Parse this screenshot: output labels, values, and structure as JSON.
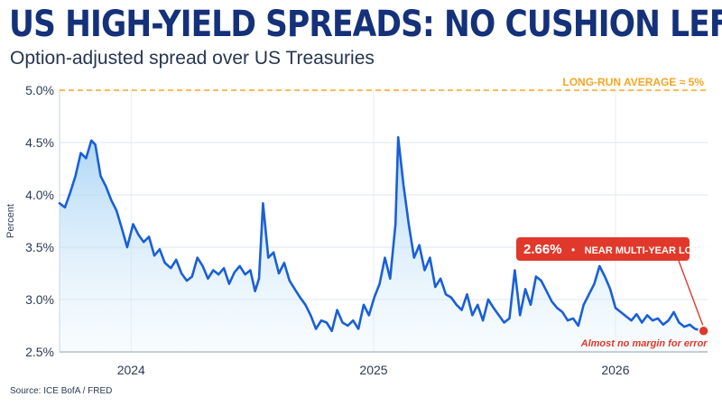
{
  "header": {
    "title": "US HIGH-YIELD SPREADS: NO CUSHION LEFT",
    "subtitle": "Option-adjusted spread over US Treasuries"
  },
  "footer": {
    "source": "Source: ICE BofA / FRED"
  },
  "colors": {
    "line": "#1a5fd6",
    "area_top": "#9fd0f3",
    "average": "#f5a623",
    "callout": "#e0392b",
    "title": "#14317a",
    "axis": "#2c3b54"
  },
  "chart_data": {
    "type": "area",
    "title": "US HIGH-YIELD SPREADS: NO CUSHION LEFT",
    "subtitle": "Option-adjusted spread over US Treasuries",
    "ylabel": "Percent",
    "xlabel": "",
    "ylim": [
      2.5,
      5.0
    ],
    "yticks": [
      2.5,
      3.0,
      3.5,
      4.0,
      4.5,
      5.0
    ],
    "ytick_labels": [
      "2.5%",
      "3.0%",
      "3.5%",
      "4.0%",
      "4.5%",
      "5.0%"
    ],
    "xlim": [
      "2023-09-15",
      "2026-05-20"
    ],
    "xtick_labels": [
      {
        "label": "2024",
        "date": "2024-01-01"
      },
      {
        "label": "2025",
        "date": "2025-01-01"
      },
      {
        "label": "2026",
        "date": "2026-01-01"
      }
    ],
    "grid": true,
    "reference_line": {
      "value": 5.0,
      "label": "LONG-RUN AVERAGE ≈ 5%"
    },
    "callout": {
      "value": "2.66%",
      "separator": "•",
      "text": "NEAR MULTI-YEAR LOWS",
      "note": "Almost no margin for error",
      "date": "2026-05-14",
      "y": 2.7
    },
    "series": [
      {
        "x": [
          "2023-09-15",
          "2023-09-23",
          "2023-10-01",
          "2023-10-09",
          "2023-10-17",
          "2023-10-25",
          "2023-11-02",
          "2023-11-08",
          "2023-11-16",
          "2023-11-24",
          "2023-12-02",
          "2023-12-10",
          "2023-12-18",
          "2023-12-26",
          "2024-01-04",
          "2024-01-12",
          "2024-01-20",
          "2024-01-28",
          "2024-02-05",
          "2024-02-13",
          "2024-02-21",
          "2024-03-01",
          "2024-03-09",
          "2024-03-17",
          "2024-03-25",
          "2024-04-02",
          "2024-04-10",
          "2024-04-18",
          "2024-04-26",
          "2024-05-04",
          "2024-05-12",
          "2024-05-20",
          "2024-05-28",
          "2024-06-05",
          "2024-06-13",
          "2024-06-21",
          "2024-06-29",
          "2024-07-06",
          "2024-07-12",
          "2024-07-18",
          "2024-07-26",
          "2024-08-03",
          "2024-08-11",
          "2024-08-19",
          "2024-08-27",
          "2024-09-04",
          "2024-09-12",
          "2024-09-20",
          "2024-09-28",
          "2024-10-06",
          "2024-10-14",
          "2024-10-22",
          "2024-10-30",
          "2024-11-07",
          "2024-11-15",
          "2024-11-23",
          "2024-12-01",
          "2024-12-09",
          "2024-12-17",
          "2024-12-25",
          "2025-01-02",
          "2025-01-10",
          "2025-01-18",
          "2025-01-26",
          "2025-02-03",
          "2025-02-07",
          "2025-02-15",
          "2025-02-23",
          "2025-03-03",
          "2025-03-11",
          "2025-03-19",
          "2025-03-27",
          "2025-04-04",
          "2025-04-12",
          "2025-04-20",
          "2025-04-28",
          "2025-05-06",
          "2025-05-14",
          "2025-05-22",
          "2025-05-30",
          "2025-06-07",
          "2025-06-15",
          "2025-06-23",
          "2025-07-01",
          "2025-07-09",
          "2025-07-17",
          "2025-07-25",
          "2025-08-02",
          "2025-08-10",
          "2025-08-18",
          "2025-08-26",
          "2025-09-03",
          "2025-09-11",
          "2025-09-19",
          "2025-09-27",
          "2025-10-05",
          "2025-10-13",
          "2025-10-21",
          "2025-10-29",
          "2025-11-06",
          "2025-11-14",
          "2025-11-22",
          "2025-11-30",
          "2025-12-08",
          "2025-12-16",
          "2025-12-24",
          "2026-01-01",
          "2026-01-09",
          "2026-01-17",
          "2026-01-25",
          "2026-02-02",
          "2026-02-10",
          "2026-02-18",
          "2026-02-26",
          "2026-03-06",
          "2026-03-14",
          "2026-03-22",
          "2026-03-30",
          "2026-04-07",
          "2026-04-15",
          "2026-04-23",
          "2026-05-01",
          "2026-05-07"
        ],
        "values": [
          3.92,
          3.88,
          4.02,
          4.18,
          4.4,
          4.35,
          4.52,
          4.48,
          4.18,
          4.08,
          3.95,
          3.85,
          3.68,
          3.5,
          3.72,
          3.62,
          3.55,
          3.6,
          3.42,
          3.48,
          3.35,
          3.3,
          3.38,
          3.25,
          3.18,
          3.22,
          3.4,
          3.32,
          3.2,
          3.28,
          3.24,
          3.3,
          3.15,
          3.26,
          3.32,
          3.24,
          3.28,
          3.08,
          3.2,
          3.92,
          3.4,
          3.45,
          3.25,
          3.35,
          3.18,
          3.1,
          3.02,
          2.95,
          2.85,
          2.72,
          2.8,
          2.78,
          2.7,
          2.9,
          2.78,
          2.75,
          2.8,
          2.72,
          2.95,
          2.85,
          3.02,
          3.15,
          3.4,
          3.2,
          3.72,
          4.55,
          4.1,
          3.72,
          3.4,
          3.52,
          3.28,
          3.4,
          3.12,
          3.2,
          3.05,
          3.02,
          2.95,
          2.9,
          3.05,
          2.85,
          2.95,
          2.8,
          3.0,
          2.92,
          2.85,
          2.78,
          2.82,
          3.28,
          2.85,
          3.1,
          2.95,
          3.22,
          3.18,
          3.08,
          2.98,
          2.92,
          2.88,
          2.8,
          2.82,
          2.75,
          2.95,
          3.05,
          3.15,
          3.32,
          3.22,
          3.1,
          2.92,
          2.88,
          2.84,
          2.8,
          2.86,
          2.78,
          2.85,
          2.8,
          2.82,
          2.76,
          2.8,
          2.88,
          2.78,
          2.74,
          2.76,
          2.72,
          2.71
        ]
      }
    ]
  }
}
